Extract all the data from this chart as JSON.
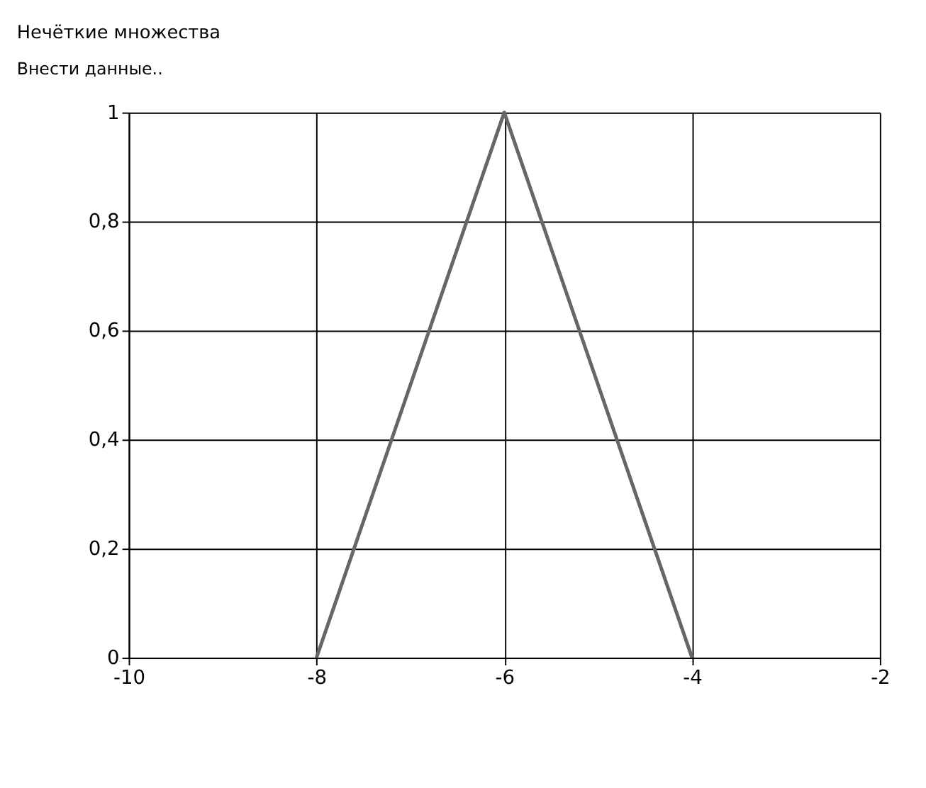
{
  "chart_data": {
    "type": "line",
    "title": "Нечёткие множества",
    "subtitle": "Внести данные..",
    "x": [
      -8,
      -6,
      -4
    ],
    "values": [
      0,
      1,
      0
    ],
    "color": "#666666",
    "xlim": [
      -10,
      -2
    ],
    "xticks": [
      -10,
      -8,
      -6,
      -4,
      -2
    ],
    "ylim": [
      0,
      1
    ],
    "yticks": [
      0,
      {
        "value": 0.2,
        "label": "0,2"
      },
      {
        "value": 0.4,
        "label": "0,4"
      },
      {
        "value": 0.6,
        "label": "0,6"
      },
      {
        "value": 0.8,
        "label": "0,8"
      },
      1
    ],
    "grid": true,
    "marker": "none",
    "line_style": "solid"
  }
}
